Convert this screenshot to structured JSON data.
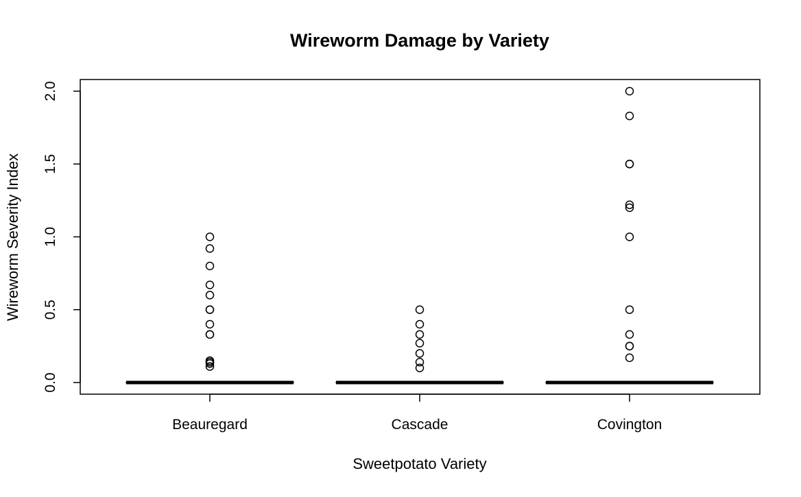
{
  "chart_data": {
    "type": "boxplot",
    "title": "Wireworm Damage by Variety",
    "xlabel": "Sweetpotato Variety",
    "ylabel": "Wireworm Severity Index",
    "ylim": [
      -0.08,
      2.08
    ],
    "y_ticks": [
      "0.0",
      "0.5",
      "1.0",
      "1.5",
      "2.0"
    ],
    "y_tick_values": [
      0,
      0.5,
      1.0,
      1.5,
      2.0
    ],
    "categories": [
      "Beauregard",
      "Cascade",
      "Covington"
    ],
    "series": [
      {
        "category": "Beauregard",
        "min": 0,
        "q1": 0,
        "median": 0,
        "q3": 0,
        "max": 0,
        "outliers": [
          0.11,
          0.13,
          0.14,
          0.15,
          0.33,
          0.33,
          0.4,
          0.5,
          0.5,
          0.6,
          0.67,
          0.8,
          0.92,
          1.0
        ]
      },
      {
        "category": "Cascade",
        "min": 0,
        "q1": 0,
        "median": 0,
        "q3": 0,
        "max": 0,
        "outliers": [
          0.1,
          0.14,
          0.2,
          0.27,
          0.33,
          0.4,
          0.5
        ]
      },
      {
        "category": "Covington",
        "min": 0,
        "q1": 0,
        "median": 0,
        "q3": 0,
        "max": 0,
        "outliers": [
          0.17,
          0.25,
          0.25,
          0.33,
          0.5,
          1.0,
          1.2,
          1.22,
          1.5,
          1.5,
          1.83,
          2.0
        ]
      }
    ],
    "grid": false,
    "legend": "none"
  }
}
